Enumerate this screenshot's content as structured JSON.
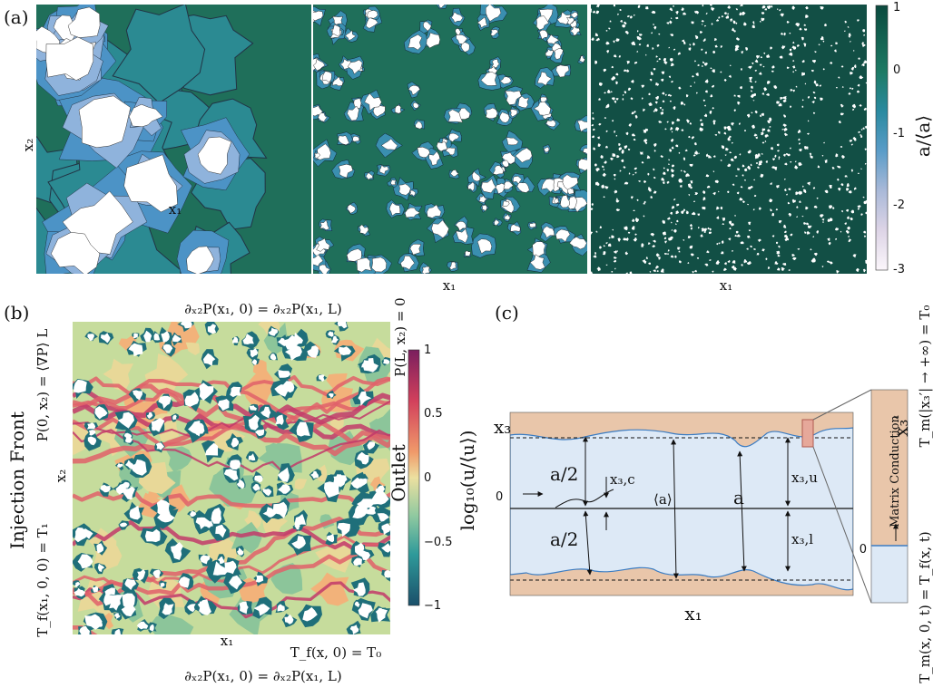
{
  "panel_a": {
    "label": "(a)",
    "x_labels": [
      "x₁",
      "x₁",
      "x₁"
    ],
    "y_label": "x₂",
    "colorbar": {
      "label": "a/⟨a⟩",
      "ticks": [
        "1",
        "0",
        "-1",
        "-2",
        "-3"
      ]
    }
  },
  "panel_b": {
    "label": "(b)",
    "top_bc": "∂ₓ₂P(x₁, 0) =    ∂ₓ₂P(x₁, L)",
    "bottom_bc": "∂ₓ₂P(x₁, 0) =    ∂ₓ₂P(x₁, L)",
    "left_title": "Injection Front",
    "left_pressure": "P(0, x₂) = ⟨∇P⟩ L",
    "left_temperature": "T_f(x₁, 0, 0) = T₁",
    "right_pressure": "P(L, x₂) = 0",
    "right_title": "Outlet",
    "initial_condition": "T_f(x, 0) = T₀",
    "x_label": "x₁",
    "y_label": "x₂",
    "colorbar": {
      "label": "log₁₀(u/⟨u⟩)",
      "ticks": [
        "1",
        "0.5",
        "0",
        "−0.5",
        "−1"
      ]
    }
  },
  "panel_c": {
    "label": "(c)",
    "x_label": "x₁",
    "y_label": "x₃",
    "zero": "0",
    "half_aperture_top": "a/2",
    "half_aperture_bottom": "a/2",
    "x3c": "x₃,c",
    "mean_aperture": "⟨a⟩",
    "aperture": "a",
    "x3u": "x₃,u",
    "x3l": "x₃,l",
    "inset": {
      "far_field": "T_m(|x₃′| → +∞) = T₀",
      "conduction": "Matrix Conduction",
      "zero": "0",
      "axis": "x₃′",
      "interface": "T_m(x, 0, t) = T_f(x, t)"
    }
  }
}
